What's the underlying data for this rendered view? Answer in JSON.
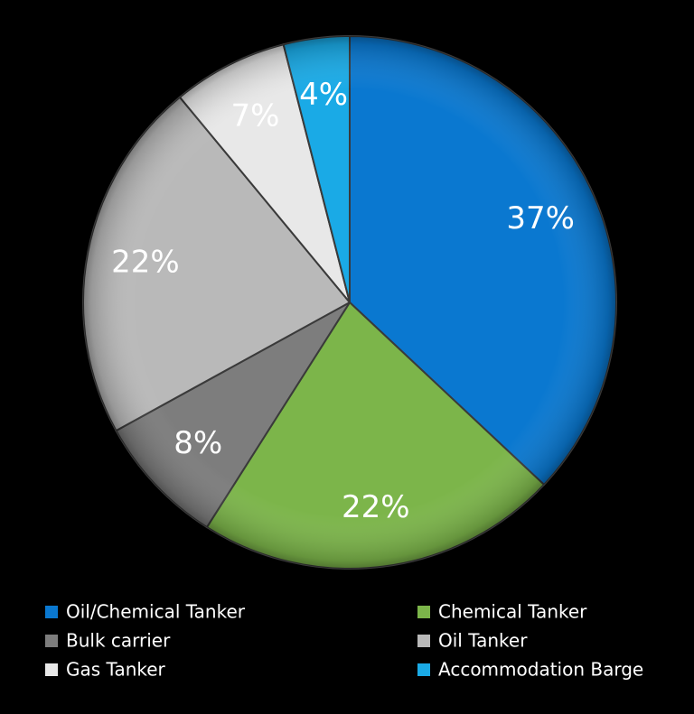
{
  "chart_data": {
    "type": "pie",
    "categories": [
      "Oil/Chemical Tanker",
      "Chemical Tanker",
      "Bulk carrier",
      "Oil Tanker",
      "Gas Tanker",
      "Accommodation Barge"
    ],
    "values": [
      37,
      22,
      8,
      22,
      7,
      4
    ],
    "value_labels": [
      "37%",
      "22%",
      "8%",
      "22%",
      "7%",
      "4%"
    ],
    "colors": [
      "#0a78d0",
      "#7cb54a",
      "#7d7d7d",
      "#b9b9b9",
      "#e8e8e8",
      "#1aaae6"
    ],
    "legend": "bottom"
  }
}
